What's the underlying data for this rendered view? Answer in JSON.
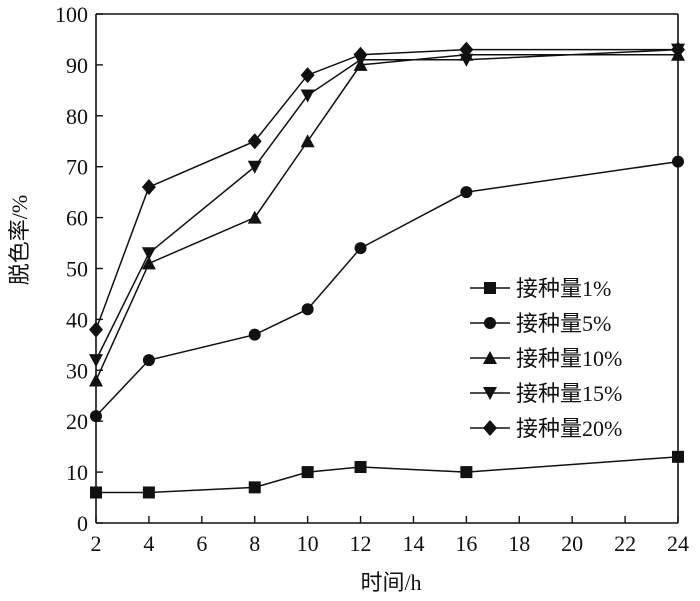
{
  "chart_data": {
    "type": "line",
    "xlabel": "时间/h",
    "ylabel": "脱色率/%",
    "xlim": [
      2,
      24
    ],
    "ylim": [
      0,
      100
    ],
    "x_ticks": [
      2,
      4,
      6,
      8,
      10,
      12,
      14,
      16,
      18,
      20,
      22,
      24
    ],
    "y_ticks": [
      0,
      10,
      20,
      30,
      40,
      50,
      60,
      70,
      80,
      90,
      100
    ],
    "grid": false,
    "legend_position": "center-right",
    "x": [
      2,
      4,
      8,
      10,
      12,
      16,
      24
    ],
    "series": [
      {
        "name": "接种量1%",
        "marker": "square",
        "values": [
          6,
          6,
          7,
          10,
          11,
          10,
          13
        ]
      },
      {
        "name": "接种量5%",
        "marker": "circle",
        "values": [
          21,
          32,
          37,
          42,
          54,
          65,
          71
        ]
      },
      {
        "name": "接种量10%",
        "marker": "triangle-up",
        "values": [
          28,
          51,
          60,
          75,
          90,
          92,
          92
        ]
      },
      {
        "name": "接种量15%",
        "marker": "triangle-down",
        "values": [
          32,
          53,
          70,
          84,
          91,
          91,
          93
        ]
      },
      {
        "name": "接种量20%",
        "marker": "diamond",
        "values": [
          38,
          66,
          75,
          88,
          92,
          93,
          93
        ]
      }
    ],
    "colors": {
      "line": "#111111",
      "marker": "#111111"
    }
  }
}
